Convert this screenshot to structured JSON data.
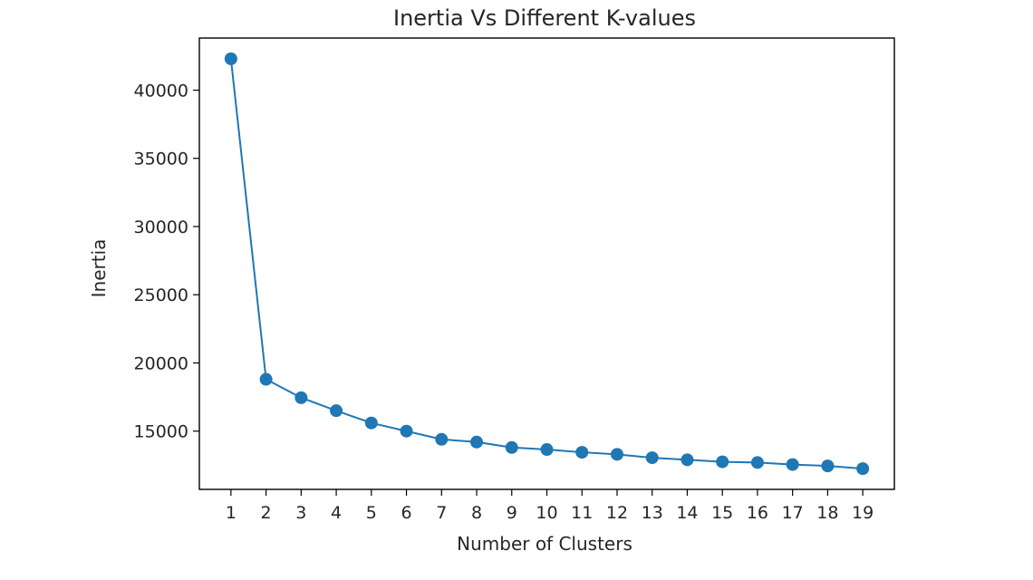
{
  "chart_data": {
    "type": "line",
    "title": "Inertia Vs Different K-values",
    "xlabel": "Number of Clusters",
    "ylabel": "Inertia",
    "x": [
      1,
      2,
      3,
      4,
      5,
      6,
      7,
      8,
      9,
      10,
      11,
      12,
      13,
      14,
      15,
      16,
      17,
      18,
      19
    ],
    "series": [
      {
        "values": [
          42300,
          18800,
          17450,
          16500,
          15600,
          15000,
          14400,
          14200,
          13800,
          13650,
          13450,
          13300,
          13050,
          12900,
          12750,
          12700,
          12550,
          12450,
          12250
        ],
        "color": "#1f77b4",
        "marker": "circle"
      }
    ],
    "xticks": [
      "1",
      "2",
      "3",
      "4",
      "5",
      "6",
      "7",
      "8",
      "9",
      "10",
      "11",
      "12",
      "13",
      "14",
      "15",
      "16",
      "17",
      "18",
      "19"
    ],
    "yticks": [
      15000,
      20000,
      25000,
      30000,
      35000,
      40000
    ],
    "xlim": [
      0.1,
      19.9
    ],
    "ylim": [
      10730,
      43820
    ],
    "grid": false,
    "legend": "none"
  }
}
